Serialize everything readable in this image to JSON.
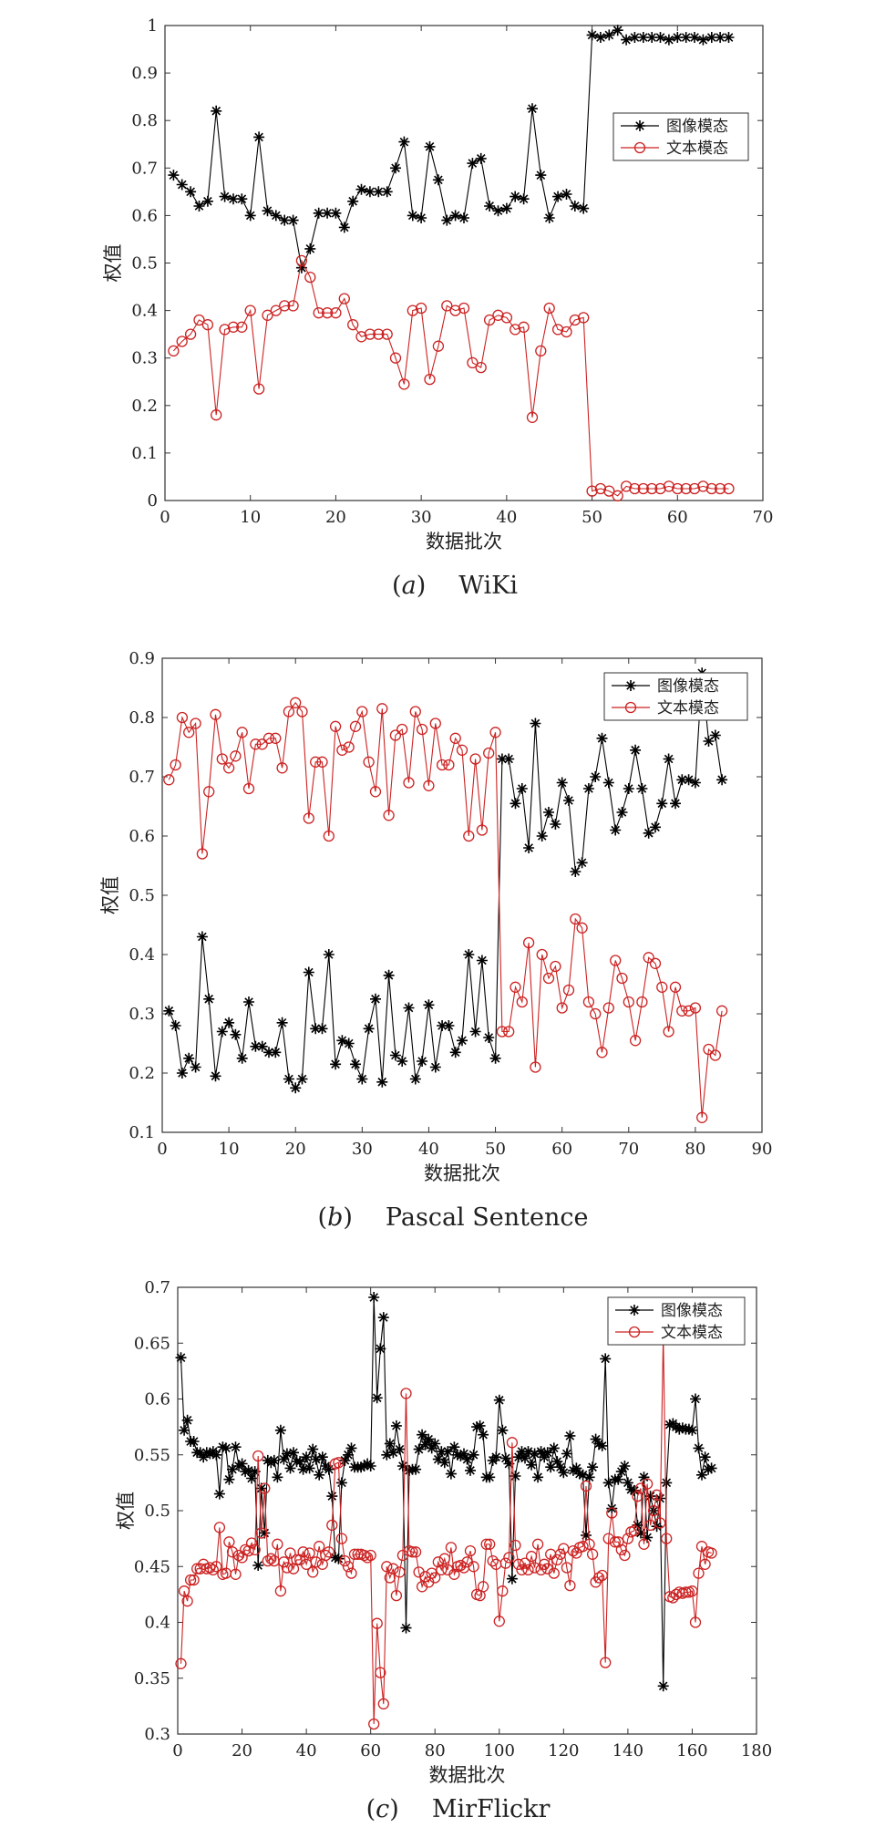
{
  "chart_data": [
    {
      "type": "line",
      "caption_letter": "a",
      "caption_name": "WiKi",
      "xlabel": "数据批次",
      "ylabel": "权值",
      "xlim": [
        0,
        70
      ],
      "ylim": [
        0,
        1.0
      ],
      "xticks": [
        0,
        10,
        20,
        30,
        40,
        50,
        60,
        70
      ],
      "yticks": [
        0,
        0.1,
        0.2,
        0.3,
        0.4,
        0.5,
        0.6,
        0.7,
        0.8,
        0.9,
        1.0
      ],
      "legend_position": "upper-right",
      "series": [
        {
          "name": "图像模态",
          "color": "#000000",
          "marker": "star",
          "values": [
            0.685,
            0.665,
            0.65,
            0.62,
            0.63,
            0.82,
            0.64,
            0.635,
            0.635,
            0.6,
            0.765,
            0.61,
            0.6,
            0.59,
            0.59,
            0.49,
            0.53,
            0.605,
            0.605,
            0.605,
            0.575,
            0.63,
            0.655,
            0.65,
            0.65,
            0.65,
            0.7,
            0.755,
            0.6,
            0.595,
            0.745,
            0.675,
            0.59,
            0.6,
            0.595,
            0.71,
            0.72,
            0.62,
            0.61,
            0.615,
            0.64,
            0.635,
            0.825,
            0.685,
            0.595,
            0.64,
            0.645,
            0.62,
            0.615,
            0.98,
            0.975,
            0.98,
            0.99,
            0.97,
            0.975,
            0.975,
            0.975,
            0.975,
            0.97,
            0.975,
            0.975,
            0.975,
            0.97,
            0.975,
            0.975,
            0.975
          ]
        },
        {
          "name": "文本模态",
          "color": "#cc2222",
          "marker": "circle",
          "values": [
            0.315,
            0.335,
            0.35,
            0.38,
            0.37,
            0.18,
            0.36,
            0.365,
            0.365,
            0.4,
            0.235,
            0.39,
            0.4,
            0.41,
            0.41,
            0.505,
            0.47,
            0.395,
            0.395,
            0.395,
            0.425,
            0.37,
            0.345,
            0.35,
            0.35,
            0.35,
            0.3,
            0.245,
            0.4,
            0.405,
            0.255,
            0.325,
            0.41,
            0.4,
            0.405,
            0.29,
            0.28,
            0.38,
            0.39,
            0.385,
            0.36,
            0.365,
            0.175,
            0.315,
            0.405,
            0.36,
            0.355,
            0.38,
            0.385,
            0.02,
            0.025,
            0.02,
            0.01,
            0.03,
            0.025,
            0.025,
            0.025,
            0.025,
            0.03,
            0.025,
            0.025,
            0.025,
            0.03,
            0.025,
            0.025,
            0.025
          ]
        }
      ]
    },
    {
      "type": "line",
      "caption_letter": "b",
      "caption_name": "Pascal Sentence",
      "xlabel": "数据批次",
      "ylabel": "权值",
      "xlim": [
        0,
        90
      ],
      "ylim": [
        0.1,
        0.9
      ],
      "xticks": [
        0,
        10,
        20,
        30,
        40,
        50,
        60,
        70,
        80,
        90
      ],
      "yticks": [
        0.1,
        0.2,
        0.3,
        0.4,
        0.5,
        0.6,
        0.7,
        0.8,
        0.9
      ],
      "legend_position": "upper-right",
      "series": [
        {
          "name": "图像模态",
          "color": "#000000",
          "marker": "star",
          "values": [
            0.305,
            0.28,
            0.2,
            0.225,
            0.21,
            0.43,
            0.325,
            0.195,
            0.27,
            0.285,
            0.265,
            0.225,
            0.32,
            0.245,
            0.245,
            0.235,
            0.235,
            0.285,
            0.19,
            0.175,
            0.19,
            0.37,
            0.275,
            0.275,
            0.4,
            0.215,
            0.255,
            0.25,
            0.215,
            0.19,
            0.275,
            0.325,
            0.185,
            0.365,
            0.23,
            0.22,
            0.31,
            0.19,
            0.22,
            0.315,
            0.21,
            0.28,
            0.28,
            0.235,
            0.255,
            0.4,
            0.27,
            0.39,
            0.26,
            0.225,
            0.73,
            0.73,
            0.655,
            0.68,
            0.58,
            0.79,
            0.6,
            0.64,
            0.62,
            0.69,
            0.66,
            0.54,
            0.555,
            0.68,
            0.7,
            0.765,
            0.69,
            0.61,
            0.64,
            0.68,
            0.745,
            0.68,
            0.605,
            0.615,
            0.655,
            0.73,
            0.655,
            0.695,
            0.695,
            0.69,
            0.875,
            0.76,
            0.77,
            0.695
          ]
        },
        {
          "name": "文本模态",
          "color": "#cc2222",
          "marker": "circle",
          "values": [
            0.695,
            0.72,
            0.8,
            0.775,
            0.79,
            0.57,
            0.675,
            0.805,
            0.73,
            0.715,
            0.735,
            0.775,
            0.68,
            0.755,
            0.755,
            0.765,
            0.765,
            0.715,
            0.81,
            0.825,
            0.81,
            0.63,
            0.725,
            0.725,
            0.6,
            0.785,
            0.745,
            0.75,
            0.785,
            0.81,
            0.725,
            0.675,
            0.815,
            0.635,
            0.77,
            0.78,
            0.69,
            0.81,
            0.78,
            0.685,
            0.79,
            0.72,
            0.72,
            0.765,
            0.745,
            0.6,
            0.73,
            0.61,
            0.74,
            0.775,
            0.27,
            0.27,
            0.345,
            0.32,
            0.42,
            0.21,
            0.4,
            0.36,
            0.38,
            0.31,
            0.34,
            0.46,
            0.445,
            0.32,
            0.3,
            0.235,
            0.31,
            0.39,
            0.36,
            0.32,
            0.255,
            0.32,
            0.395,
            0.385,
            0.345,
            0.27,
            0.345,
            0.305,
            0.305,
            0.31,
            0.125,
            0.24,
            0.23,
            0.305
          ]
        }
      ]
    },
    {
      "type": "line",
      "caption_letter": "c",
      "caption_name": "MirFlickr",
      "xlabel": "数据批次",
      "ylabel": "权值",
      "xlim": [
        0,
        180
      ],
      "ylim": [
        0.3,
        0.7
      ],
      "xticks": [
        0,
        20,
        40,
        60,
        80,
        100,
        120,
        140,
        160,
        180
      ],
      "yticks": [
        0.3,
        0.35,
        0.4,
        0.45,
        0.5,
        0.55,
        0.6,
        0.65,
        0.7
      ],
      "legend_position": "upper-right",
      "series": [
        {
          "name": "图像模态",
          "color": "#000000",
          "marker": "star",
          "values": [
            0.637,
            0.572,
            0.581,
            0.562,
            0.562,
            0.552,
            0.552,
            0.548,
            0.552,
            0.551,
            0.553,
            0.55,
            0.515,
            0.557,
            0.556,
            0.528,
            0.537,
            0.557,
            0.54,
            0.542,
            0.535,
            0.536,
            0.529,
            0.535,
            0.451,
            0.52,
            0.48,
            0.545,
            0.543,
            0.545,
            0.53,
            0.572,
            0.546,
            0.551,
            0.538,
            0.552,
            0.544,
            0.544,
            0.537,
            0.548,
            0.538,
            0.555,
            0.546,
            0.532,
            0.548,
            0.54,
            0.537,
            0.513,
            0.458,
            0.457,
            0.525,
            0.545,
            0.55,
            0.556,
            0.539,
            0.539,
            0.539,
            0.54,
            0.542,
            0.54,
            0.691,
            0.601,
            0.645,
            0.673,
            0.55,
            0.56,
            0.552,
            0.576,
            0.555,
            0.54,
            0.395,
            0.536,
            0.537,
            0.537,
            0.555,
            0.568,
            0.559,
            0.564,
            0.556,
            0.56,
            0.546,
            0.553,
            0.543,
            0.553,
            0.533,
            0.557,
            0.55,
            0.549,
            0.551,
            0.546,
            0.536,
            0.55,
            0.575,
            0.576,
            0.568,
            0.53,
            0.53,
            0.545,
            0.548,
            0.599,
            0.572,
            0.547,
            0.542,
            0.439,
            0.531,
            0.548,
            0.553,
            0.547,
            0.553,
            0.541,
            0.551,
            0.53,
            0.553,
            0.548,
            0.552,
            0.539,
            0.556,
            0.544,
            0.539,
            0.534,
            0.551,
            0.567,
            0.536,
            0.538,
            0.533,
            0.532,
            0.478,
            0.53,
            0.539,
            0.564,
            0.56,
            0.558,
            0.636,
            0.525,
            0.502,
            0.528,
            0.528,
            0.535,
            0.54,
            0.525,
            0.519,
            0.518,
            0.487,
            0.48,
            0.53,
            0.476,
            0.513,
            0.5,
            0.486,
            0.511,
            0.343,
            0.525,
            0.577,
            0.578,
            0.575,
            0.573,
            0.574,
            0.573,
            0.573,
            0.572,
            0.6,
            0.556,
            0.532,
            0.548,
            0.537,
            0.538
          ]
        },
        {
          "name": "文本模态",
          "color": "#cc2222",
          "marker": "circle",
          "values": [
            0.363,
            0.428,
            0.419,
            0.438,
            0.438,
            0.448,
            0.448,
            0.452,
            0.448,
            0.449,
            0.447,
            0.45,
            0.485,
            0.443,
            0.444,
            0.472,
            0.463,
            0.443,
            0.46,
            0.458,
            0.465,
            0.464,
            0.471,
            0.465,
            0.549,
            0.48,
            0.52,
            0.455,
            0.457,
            0.455,
            0.47,
            0.428,
            0.454,
            0.449,
            0.462,
            0.448,
            0.456,
            0.456,
            0.463,
            0.452,
            0.462,
            0.445,
            0.454,
            0.468,
            0.452,
            0.46,
            0.463,
            0.487,
            0.542,
            0.543,
            0.475,
            0.455,
            0.45,
            0.444,
            0.461,
            0.461,
            0.461,
            0.46,
            0.458,
            0.46,
            0.309,
            0.399,
            0.355,
            0.327,
            0.45,
            0.44,
            0.448,
            0.424,
            0.445,
            0.46,
            0.605,
            0.464,
            0.463,
            0.463,
            0.445,
            0.432,
            0.441,
            0.436,
            0.444,
            0.44,
            0.454,
            0.447,
            0.457,
            0.447,
            0.467,
            0.443,
            0.45,
            0.451,
            0.449,
            0.454,
            0.464,
            0.45,
            0.425,
            0.424,
            0.432,
            0.47,
            0.47,
            0.455,
            0.452,
            0.401,
            0.428,
            0.453,
            0.458,
            0.561,
            0.469,
            0.452,
            0.447,
            0.453,
            0.447,
            0.459,
            0.449,
            0.47,
            0.447,
            0.452,
            0.448,
            0.461,
            0.444,
            0.456,
            0.461,
            0.466,
            0.449,
            0.433,
            0.464,
            0.462,
            0.467,
            0.468,
            0.522,
            0.47,
            0.461,
            0.436,
            0.44,
            0.442,
            0.364,
            0.475,
            0.498,
            0.472,
            0.472,
            0.465,
            0.46,
            0.475,
            0.481,
            0.482,
            0.513,
            0.52,
            0.47,
            0.524,
            0.487,
            0.5,
            0.514,
            0.489,
            0.657,
            0.475,
            0.423,
            0.422,
            0.425,
            0.427,
            0.426,
            0.427,
            0.427,
            0.428,
            0.4,
            0.444,
            0.468,
            0.452,
            0.463,
            0.462
          ]
        }
      ]
    }
  ]
}
